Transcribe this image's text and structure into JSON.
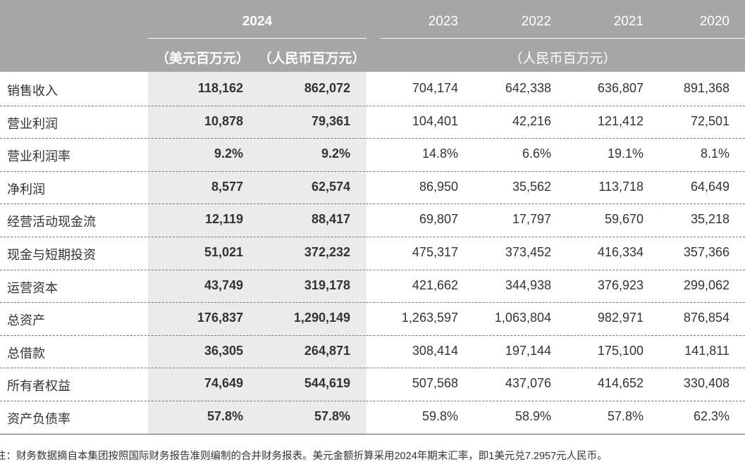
{
  "header": {
    "year_main": "2024",
    "years": [
      "2023",
      "2022",
      "2021",
      "2020"
    ],
    "unit_usd": "（美元百万元）",
    "unit_rmb": "（人民币百万元）",
    "unit_hist": "（人民币百万元）"
  },
  "table": {
    "rows": [
      {
        "label": "销售收入",
        "values": [
          "118,162",
          "862,072",
          "704,174",
          "642,338",
          "636,807",
          "891,368"
        ]
      },
      {
        "label": "营业利润",
        "values": [
          "10,878",
          "79,361",
          "104,401",
          "42,216",
          "121,412",
          "72,501"
        ]
      },
      {
        "label": "营业利润率",
        "values": [
          "9.2%",
          "9.2%",
          "14.8%",
          "6.6%",
          "19.1%",
          "8.1%"
        ]
      },
      {
        "label": "净利润",
        "values": [
          "8,577",
          "62,574",
          "86,950",
          "35,562",
          "113,718",
          "64,649"
        ]
      },
      {
        "label": "经营活动现金流",
        "values": [
          "12,119",
          "88,417",
          "69,807",
          "17,797",
          "59,670",
          "35,218"
        ]
      },
      {
        "label": "现金与短期投资",
        "values": [
          "51,021",
          "372,232",
          "475,317",
          "373,452",
          "416,334",
          "357,366"
        ]
      },
      {
        "label": "运营资本",
        "values": [
          "43,749",
          "319,178",
          "421,662",
          "344,938",
          "376,923",
          "299,062"
        ]
      },
      {
        "label": "总资产",
        "values": [
          "176,837",
          "1,290,149",
          "1,263,597",
          "1,063,804",
          "982,971",
          "876,854"
        ]
      },
      {
        "label": "总借款",
        "values": [
          "36,305",
          "264,871",
          "308,414",
          "197,144",
          "175,100",
          "141,811"
        ]
      },
      {
        "label": "所有者权益",
        "values": [
          "74,649",
          "544,619",
          "507,568",
          "437,076",
          "414,652",
          "330,408"
        ]
      },
      {
        "label": "资产负债率",
        "values": [
          "57.8%",
          "57.8%",
          "59.8%",
          "58.9%",
          "57.8%",
          "62.3%"
        ]
      }
    ]
  },
  "footnote": "注：财务数据摘自本集团按照国际财务报告准则编制的合并财务报表。美元金额折算采用2024年期末汇率，即1美元兑7.2957元人民币。"
}
